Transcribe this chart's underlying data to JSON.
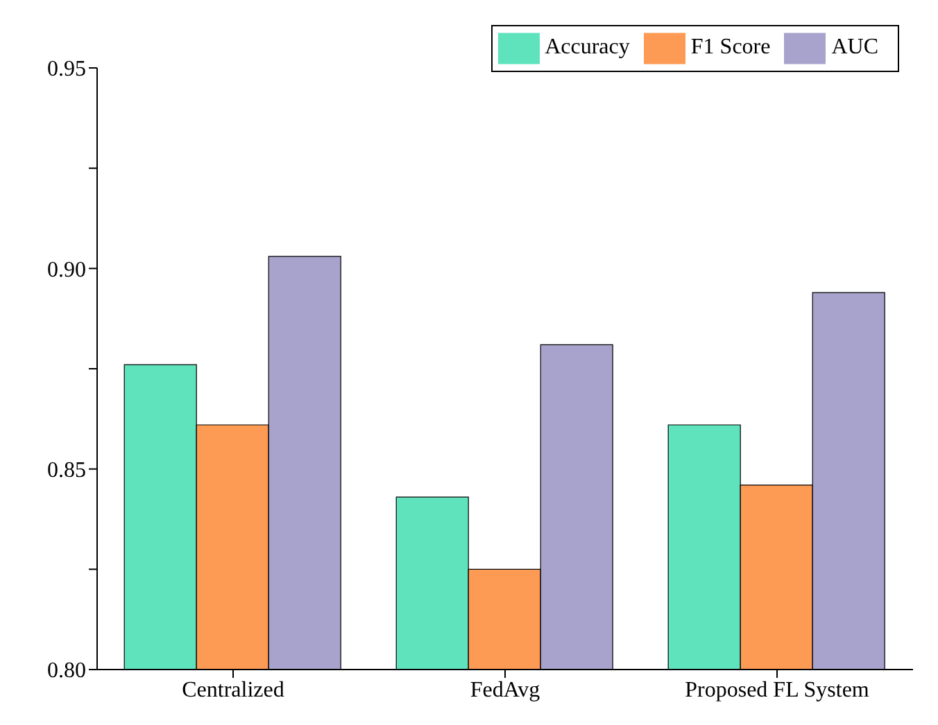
{
  "chart_data": {
    "type": "bar",
    "categories": [
      "Centralized",
      "FedAvg",
      "Proposed FL System"
    ],
    "series": [
      {
        "name": "Accuracy",
        "color": "#5ee3bd",
        "values": [
          0.876,
          0.843,
          0.861
        ]
      },
      {
        "name": "F1 Score",
        "color": "#fd9a53",
        "values": [
          0.861,
          0.825,
          0.846
        ]
      },
      {
        "name": "AUC",
        "color": "#a7a3cc",
        "values": [
          0.903,
          0.881,
          0.894
        ]
      }
    ],
    "ylim": [
      0.8,
      0.95
    ],
    "yticks": [
      {
        "value": 0.8,
        "label": "0.80"
      },
      {
        "value": 0.825,
        "label": null
      },
      {
        "value": 0.85,
        "label": "0.85"
      },
      {
        "value": 0.875,
        "label": null
      },
      {
        "value": 0.9,
        "label": "0.90"
      },
      {
        "value": 0.925,
        "label": null
      },
      {
        "value": 0.95,
        "label": "0.95"
      }
    ],
    "grid": false,
    "legend": "top right"
  }
}
